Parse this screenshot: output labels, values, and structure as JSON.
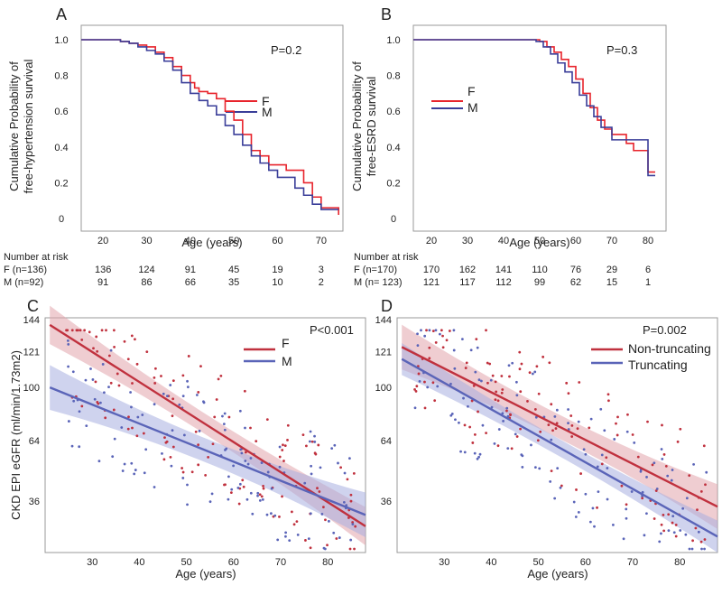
{
  "colors": {
    "female": "#e8242c",
    "male": "#3a3e99",
    "nontrunc": "#c0313e",
    "trunc": "#5a64b8",
    "female_band": "#e1a4ab",
    "male_band": "#a7aee0"
  },
  "chart_data": [
    {
      "panel": "A",
      "type": "line",
      "subtype": "kaplan-meier-step",
      "xlabel": "Age (years)",
      "ylabel_lines": [
        "Cumulative Probability of",
        "free-hypertension survival"
      ],
      "xlim": [
        15,
        75
      ],
      "ylim": [
        0,
        1.0
      ],
      "xticks": [
        "20",
        "30",
        "40",
        "50",
        "60",
        "70"
      ],
      "yticks": [
        "1.0",
        "0.8",
        "0.6",
        "0.4",
        "0.2",
        "0"
      ],
      "pvalue": "P=0.2",
      "legend": [
        "F",
        "M"
      ],
      "series": [
        {
          "name": "F",
          "x": [
            15,
            22,
            24,
            26,
            28,
            30,
            32,
            34,
            36,
            38,
            40,
            41,
            42,
            44,
            46,
            48,
            50,
            52,
            54,
            56,
            58,
            62,
            66,
            68,
            70,
            72,
            74
          ],
          "y": [
            1.0,
            1.0,
            0.99,
            0.98,
            0.97,
            0.96,
            0.93,
            0.9,
            0.85,
            0.8,
            0.76,
            0.73,
            0.71,
            0.7,
            0.67,
            0.6,
            0.55,
            0.47,
            0.38,
            0.35,
            0.3,
            0.27,
            0.2,
            0.12,
            0.06,
            0.06,
            0.02
          ]
        },
        {
          "name": "M",
          "x": [
            15,
            22,
            24,
            26,
            28,
            30,
            32,
            34,
            36,
            38,
            40,
            42,
            44,
            46,
            48,
            50,
            52,
            54,
            56,
            58,
            60,
            64,
            66,
            68,
            70,
            74
          ],
          "y": [
            1.0,
            1.0,
            0.99,
            0.98,
            0.96,
            0.94,
            0.92,
            0.88,
            0.83,
            0.76,
            0.7,
            0.66,
            0.63,
            0.58,
            0.52,
            0.47,
            0.41,
            0.35,
            0.31,
            0.27,
            0.23,
            0.17,
            0.13,
            0.08,
            0.05,
            0.05
          ]
        }
      ],
      "risk_table": {
        "header": "Number at risk",
        "rows": [
          {
            "label": "F (n=136)",
            "values": [
              "136",
              "124",
              "91",
              "45",
              "19",
              "3"
            ]
          },
          {
            "label": "M (n=92)",
            "values": [
              "91",
              "86",
              "66",
              "35",
              "10",
              "2"
            ]
          }
        ]
      }
    },
    {
      "panel": "B",
      "type": "line",
      "subtype": "kaplan-meier-step",
      "xlabel": "Age (years)",
      "ylabel_lines": [
        "Cumulative Probability of",
        "free-ESRD survival"
      ],
      "xlim": [
        15,
        85
      ],
      "ylim": [
        0,
        1.0
      ],
      "xticks": [
        "20",
        "30",
        "40",
        "50",
        "60",
        "70",
        "80"
      ],
      "yticks": [
        "1.0",
        "0.8",
        "0.6",
        "0.4",
        "0.2",
        "0"
      ],
      "pvalue": "P=0.3",
      "legend": [
        "F",
        "M"
      ],
      "series": [
        {
          "name": "F",
          "x": [
            15,
            48,
            50,
            52,
            54,
            56,
            58,
            60,
            62,
            64,
            66,
            68,
            70,
            72,
            74,
            76,
            78,
            80,
            82
          ],
          "y": [
            1.0,
            1.0,
            0.99,
            0.96,
            0.93,
            0.89,
            0.85,
            0.78,
            0.7,
            0.62,
            0.55,
            0.5,
            0.47,
            0.47,
            0.42,
            0.38,
            0.38,
            0.26,
            0.26
          ]
        },
        {
          "name": "M",
          "x": [
            15,
            47,
            49,
            51,
            53,
            55,
            57,
            59,
            61,
            63,
            65,
            67,
            70,
            74,
            78,
            80,
            82
          ],
          "y": [
            1.0,
            1.0,
            0.99,
            0.96,
            0.92,
            0.87,
            0.82,
            0.76,
            0.69,
            0.63,
            0.57,
            0.51,
            0.44,
            0.44,
            0.44,
            0.24,
            0.24
          ]
        }
      ],
      "risk_table": {
        "header": "Number at risk",
        "rows": [
          {
            "label": "F (n=170)",
            "values": [
              "170",
              "162",
              "141",
              "110",
              "76",
              "29",
              "6"
            ]
          },
          {
            "label": "M (n= 123)",
            "values": [
              "121",
              "117",
              "112",
              "99",
              "62",
              "15",
              "1"
            ]
          }
        ]
      }
    },
    {
      "panel": "C",
      "type": "scatter",
      "xlabel": "Age (years)",
      "ylabel": "CKD EPI eGFR (ml/min/1.73m2)",
      "xlim": [
        20,
        88
      ],
      "ylim": [
        15,
        147
      ],
      "xticks": [
        "30",
        "40",
        "50",
        "60",
        "70",
        "80"
      ],
      "yticks": [
        "144",
        "121",
        "100",
        "64",
        "36"
      ],
      "pvalue": "P<0.001",
      "legend": [
        "F",
        "M"
      ],
      "fits": [
        {
          "name": "F",
          "intercept": 178.5,
          "slope": -1.69,
          "band": 6
        },
        {
          "name": "M",
          "intercept": 130.3,
          "slope": -1.07,
          "band": 7
        }
      ],
      "points": {
        "seed": 17,
        "count_per_group": 130,
        "x_range": [
          24,
          86
        ],
        "y_range": [
          17,
          140
        ]
      }
    },
    {
      "panel": "D",
      "type": "scatter",
      "xlabel": "Age (years)",
      "ylabel": "",
      "xlim": [
        20,
        88
      ],
      "ylim": [
        15,
        147
      ],
      "xticks": [
        "30",
        "40",
        "50",
        "60",
        "70",
        "80"
      ],
      "yticks": [
        "144",
        "121",
        "100",
        "64",
        "36"
      ],
      "pvalue": "P=0.002",
      "legend": [
        "Non-truncating",
        "Truncating"
      ],
      "fits": [
        {
          "name": "Non-truncating",
          "intercept": 158.7,
          "slope": -1.34,
          "band": 7
        },
        {
          "name": "Truncating",
          "intercept": 155.1,
          "slope": -1.49,
          "band": 5
        }
      ],
      "points": {
        "seed": 41,
        "count_per_group": 125,
        "x_range": [
          23,
          86
        ],
        "y_range": [
          17,
          140
        ]
      }
    }
  ]
}
